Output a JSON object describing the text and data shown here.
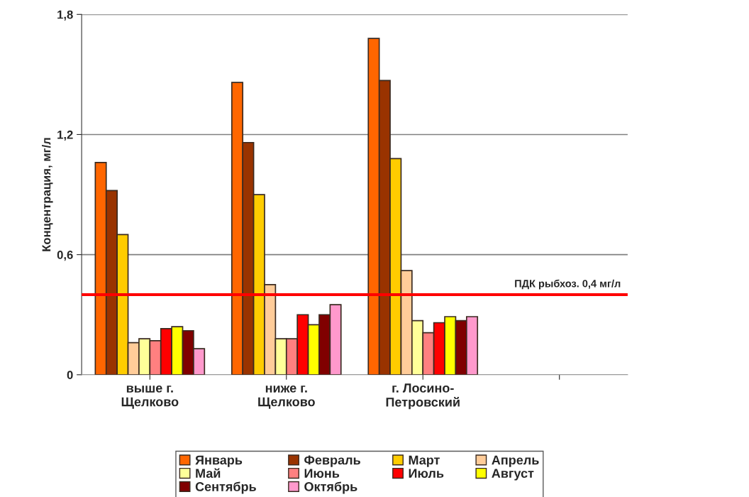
{
  "chart_data": {
    "type": "bar",
    "ylabel": "Концентрация, мг/л",
    "categories": [
      "выше г.\nЩелково",
      "ниже г.\nЩелково",
      "г. Лосино-\nПетровский",
      null
    ],
    "series": [
      {
        "name": "Январь",
        "color": "#ff6600",
        "values": [
          1.06,
          1.46,
          1.68,
          null
        ]
      },
      {
        "name": "Февраль",
        "color": "#993300",
        "values": [
          0.92,
          1.16,
          1.47,
          null
        ]
      },
      {
        "name": "Март",
        "color": "#ffcc00",
        "values": [
          0.7,
          0.9,
          1.08,
          null
        ]
      },
      {
        "name": "Апрель",
        "color": "#ffcc99",
        "values": [
          0.16,
          0.45,
          0.52,
          null
        ]
      },
      {
        "name": "Май",
        "color": "#ffff99",
        "values": [
          0.18,
          0.18,
          0.27,
          null
        ]
      },
      {
        "name": "Июнь",
        "color": "#ff8080",
        "values": [
          0.17,
          0.18,
          0.21,
          null
        ]
      },
      {
        "name": "Июль",
        "color": "#ff0000",
        "values": [
          0.23,
          0.3,
          0.26,
          null
        ]
      },
      {
        "name": "Август",
        "color": "#ffff00",
        "values": [
          0.24,
          0.25,
          0.29,
          null
        ]
      },
      {
        "name": "Сентябрь",
        "color": "#800000",
        "values": [
          0.22,
          0.3,
          0.27,
          null
        ]
      },
      {
        "name": "Октябрь",
        "color": "#ff99cc",
        "values": [
          0.13,
          0.35,
          0.29,
          null
        ]
      }
    ],
    "ylim": [
      0,
      1.8
    ],
    "yticks": [
      {
        "value": 0,
        "label": "0"
      },
      {
        "value": 0.6,
        "label": "0,6"
      },
      {
        "value": 1.2,
        "label": "1,2"
      },
      {
        "value": 1.8,
        "label": "1,8"
      }
    ],
    "ref_lines": [
      {
        "axis": "y",
        "value": 0.4,
        "label": "ПДК рыбхоз. 0,4 мг/л",
        "color": "#ff0000"
      }
    ],
    "grid": "y",
    "legend": "bottom"
  }
}
